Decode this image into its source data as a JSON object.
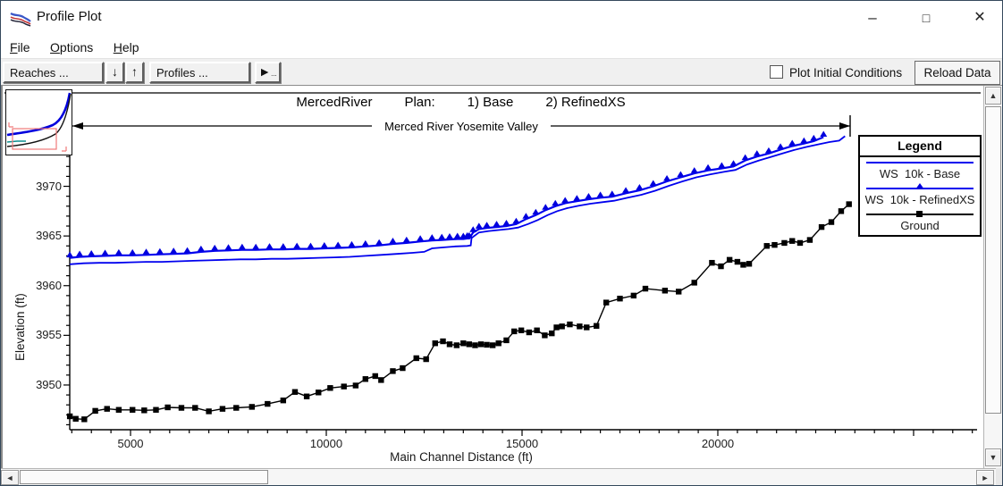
{
  "window": {
    "title": "Profile Plot",
    "icons": {
      "minimize": "–",
      "maximize": "□",
      "close": "✕"
    }
  },
  "menu": {
    "items": [
      {
        "u": "F",
        "rest": "ile"
      },
      {
        "u": "O",
        "rest": "ptions"
      },
      {
        "u": "H",
        "rest": "elp"
      }
    ]
  },
  "toolbar": {
    "reaches_label": "Reaches ...",
    "down_icon": "↓",
    "up_icon": "↑",
    "profiles_label": "Profiles ...",
    "animate_icon": "►",
    "animate_dots": "...",
    "plot_initial_label": "Plot Initial Conditions",
    "reload_label": "Reload Data"
  },
  "scrollbars": {
    "up": "▲",
    "down": "▼",
    "left": "◄",
    "right": "►"
  },
  "chart_data": {
    "type": "line",
    "title": {
      "river": "MercedRiver",
      "plan_label": "Plan:",
      "plan1": "1) Base",
      "plan2": "2) RefinedXS"
    },
    "subtitle": "Merced River Yosemite Valley",
    "xlabel": "Main Channel Distance (ft)",
    "ylabel": "Elevation (ft)",
    "xlim": [
      3447,
      23425
    ],
    "ylim": [
      3945.5,
      3979.4
    ],
    "x_major_ticks": [
      5000,
      10000,
      15000,
      20000
    ],
    "x_minor_step": 500,
    "y_major_ticks": [
      3950,
      3955,
      3960,
      3965,
      3970
    ],
    "y_minor_step": 1,
    "legend_title": "Legend",
    "legend_position": "right",
    "grid": false,
    "series": [
      {
        "name": "WS  10k - Base",
        "color": "#0000ee",
        "marker": "none",
        "width": 1.8,
        "points": [
          [
            3450,
            3962.15
          ],
          [
            3800,
            3962.25
          ],
          [
            4200,
            3962.3
          ],
          [
            4600,
            3962.3
          ],
          [
            5000,
            3962.35
          ],
          [
            5400,
            3962.4
          ],
          [
            5800,
            3962.4
          ],
          [
            6200,
            3962.45
          ],
          [
            6600,
            3962.5
          ],
          [
            7000,
            3962.55
          ],
          [
            7400,
            3962.6
          ],
          [
            7800,
            3962.65
          ],
          [
            8200,
            3962.65
          ],
          [
            8600,
            3962.7
          ],
          [
            9000,
            3962.7
          ],
          [
            9400,
            3962.75
          ],
          [
            9800,
            3962.8
          ],
          [
            10200,
            3962.85
          ],
          [
            10600,
            3962.9
          ],
          [
            11000,
            3963.0
          ],
          [
            11400,
            3963.1
          ],
          [
            11800,
            3963.2
          ],
          [
            12200,
            3963.3
          ],
          [
            12500,
            3963.4
          ],
          [
            12700,
            3963.75
          ],
          [
            13000,
            3963.85
          ],
          [
            13300,
            3963.95
          ],
          [
            13600,
            3964.0
          ],
          [
            13690,
            3964.05
          ],
          [
            13710,
            3964.8
          ],
          [
            13900,
            3965.35
          ],
          [
            14150,
            3965.5
          ],
          [
            14400,
            3965.6
          ],
          [
            14650,
            3965.7
          ],
          [
            14900,
            3965.85
          ],
          [
            15150,
            3966.2
          ],
          [
            15400,
            3966.6
          ],
          [
            15650,
            3967.1
          ],
          [
            15900,
            3967.5
          ],
          [
            16150,
            3967.8
          ],
          [
            16450,
            3968.05
          ],
          [
            16750,
            3968.25
          ],
          [
            17050,
            3968.4
          ],
          [
            17350,
            3968.55
          ],
          [
            17700,
            3968.85
          ],
          [
            18050,
            3969.15
          ],
          [
            18400,
            3969.55
          ],
          [
            18750,
            3970.05
          ],
          [
            19100,
            3970.5
          ],
          [
            19450,
            3970.9
          ],
          [
            19800,
            3971.2
          ],
          [
            20150,
            3971.45
          ],
          [
            20450,
            3971.65
          ],
          [
            20750,
            3972.2
          ],
          [
            21050,
            3972.6
          ],
          [
            21350,
            3972.95
          ],
          [
            21650,
            3973.3
          ],
          [
            21950,
            3973.65
          ],
          [
            22250,
            3973.95
          ],
          [
            22550,
            3974.2
          ],
          [
            22850,
            3974.45
          ],
          [
            23100,
            3974.6
          ],
          [
            23250,
            3975.05
          ]
        ]
      },
      {
        "name": "WS  10k - RefinedXS",
        "color": "#0000ee",
        "marker": "triangle",
        "width": 2.2,
        "points": [
          [
            3450,
            3962.8
          ],
          [
            3700,
            3962.9
          ],
          [
            4000,
            3962.95
          ],
          [
            4350,
            3963.0
          ],
          [
            4700,
            3963.05
          ],
          [
            5050,
            3963.05
          ],
          [
            5400,
            3963.1
          ],
          [
            5750,
            3963.15
          ],
          [
            6100,
            3963.2
          ],
          [
            6450,
            3963.25
          ],
          [
            6800,
            3963.4
          ],
          [
            7150,
            3963.5
          ],
          [
            7500,
            3963.55
          ],
          [
            7850,
            3963.6
          ],
          [
            8200,
            3963.6
          ],
          [
            8550,
            3963.65
          ],
          [
            8900,
            3963.65
          ],
          [
            9250,
            3963.7
          ],
          [
            9600,
            3963.7
          ],
          [
            9950,
            3963.75
          ],
          [
            10300,
            3963.8
          ],
          [
            10650,
            3963.85
          ],
          [
            11000,
            3963.95
          ],
          [
            11350,
            3964.05
          ],
          [
            11700,
            3964.2
          ],
          [
            12050,
            3964.3
          ],
          [
            12400,
            3964.45
          ],
          [
            12700,
            3964.55
          ],
          [
            12950,
            3964.6
          ],
          [
            13150,
            3964.65
          ],
          [
            13350,
            3964.7
          ],
          [
            13500,
            3964.7
          ],
          [
            13600,
            3964.75
          ],
          [
            13650,
            3964.75
          ],
          [
            13750,
            3965.35
          ],
          [
            13900,
            3965.7
          ],
          [
            14100,
            3965.8
          ],
          [
            14350,
            3965.9
          ],
          [
            14600,
            3966.0
          ],
          [
            14850,
            3966.2
          ],
          [
            15100,
            3966.7
          ],
          [
            15350,
            3967.1
          ],
          [
            15600,
            3967.6
          ],
          [
            15850,
            3968.0
          ],
          [
            16100,
            3968.3
          ],
          [
            16400,
            3968.5
          ],
          [
            16700,
            3968.7
          ],
          [
            17000,
            3968.85
          ],
          [
            17300,
            3968.95
          ],
          [
            17650,
            3969.3
          ],
          [
            18000,
            3969.6
          ],
          [
            18350,
            3970.0
          ],
          [
            18700,
            3970.5
          ],
          [
            19050,
            3970.9
          ],
          [
            19400,
            3971.3
          ],
          [
            19750,
            3971.6
          ],
          [
            20100,
            3971.8
          ],
          [
            20400,
            3972.0
          ],
          [
            20700,
            3972.6
          ],
          [
            21000,
            3973.0
          ],
          [
            21300,
            3973.3
          ],
          [
            21600,
            3973.7
          ],
          [
            21900,
            3974.05
          ],
          [
            22200,
            3974.3
          ],
          [
            22450,
            3974.55
          ],
          [
            22700,
            3974.95
          ]
        ]
      },
      {
        "name": "Ground",
        "color": "#000000",
        "marker": "square",
        "width": 1.4,
        "points": [
          [
            3450,
            3946.85
          ],
          [
            3600,
            3946.6
          ],
          [
            3820,
            3946.55
          ],
          [
            4100,
            3947.4
          ],
          [
            4400,
            3947.6
          ],
          [
            4700,
            3947.5
          ],
          [
            5050,
            3947.5
          ],
          [
            5350,
            3947.45
          ],
          [
            5650,
            3947.5
          ],
          [
            5950,
            3947.75
          ],
          [
            6300,
            3947.7
          ],
          [
            6650,
            3947.7
          ],
          [
            7000,
            3947.35
          ],
          [
            7350,
            3947.6
          ],
          [
            7700,
            3947.7
          ],
          [
            8100,
            3947.8
          ],
          [
            8500,
            3948.1
          ],
          [
            8900,
            3948.45
          ],
          [
            9200,
            3949.3
          ],
          [
            9500,
            3948.85
          ],
          [
            9800,
            3949.25
          ],
          [
            10100,
            3949.7
          ],
          [
            10450,
            3949.85
          ],
          [
            10750,
            3949.95
          ],
          [
            11000,
            3950.6
          ],
          [
            11250,
            3950.9
          ],
          [
            11400,
            3950.5
          ],
          [
            11700,
            3951.4
          ],
          [
            11950,
            3951.7
          ],
          [
            12300,
            3952.7
          ],
          [
            12550,
            3952.6
          ],
          [
            12780,
            3954.2
          ],
          [
            12980,
            3954.4
          ],
          [
            13150,
            3954.1
          ],
          [
            13330,
            3954.0
          ],
          [
            13500,
            3954.2
          ],
          [
            13650,
            3954.1
          ],
          [
            13800,
            3954.0
          ],
          [
            13950,
            3954.1
          ],
          [
            14100,
            3954.05
          ],
          [
            14250,
            3954.0
          ],
          [
            14400,
            3954.2
          ],
          [
            14600,
            3954.5
          ],
          [
            14800,
            3955.4
          ],
          [
            14980,
            3955.5
          ],
          [
            15180,
            3955.3
          ],
          [
            15380,
            3955.5
          ],
          [
            15580,
            3955.0
          ],
          [
            15760,
            3955.2
          ],
          [
            15880,
            3955.8
          ],
          [
            16020,
            3955.9
          ],
          [
            16220,
            3956.1
          ],
          [
            16470,
            3955.9
          ],
          [
            16650,
            3955.8
          ],
          [
            16900,
            3955.95
          ],
          [
            17150,
            3958.3
          ],
          [
            17500,
            3958.7
          ],
          [
            17850,
            3959.0
          ],
          [
            18150,
            3959.7
          ],
          [
            18650,
            3959.5
          ],
          [
            19000,
            3959.4
          ],
          [
            19400,
            3960.3
          ],
          [
            19850,
            3962.3
          ],
          [
            20080,
            3961.95
          ],
          [
            20300,
            3962.6
          ],
          [
            20500,
            3962.4
          ],
          [
            20650,
            3962.1
          ],
          [
            20800,
            3962.2
          ],
          [
            21250,
            3964.0
          ],
          [
            21450,
            3964.1
          ],
          [
            21700,
            3964.3
          ],
          [
            21900,
            3964.5
          ],
          [
            22100,
            3964.3
          ],
          [
            22350,
            3964.6
          ],
          [
            22650,
            3965.9
          ],
          [
            22900,
            3966.4
          ],
          [
            23150,
            3967.5
          ],
          [
            23350,
            3968.2
          ]
        ]
      }
    ]
  }
}
